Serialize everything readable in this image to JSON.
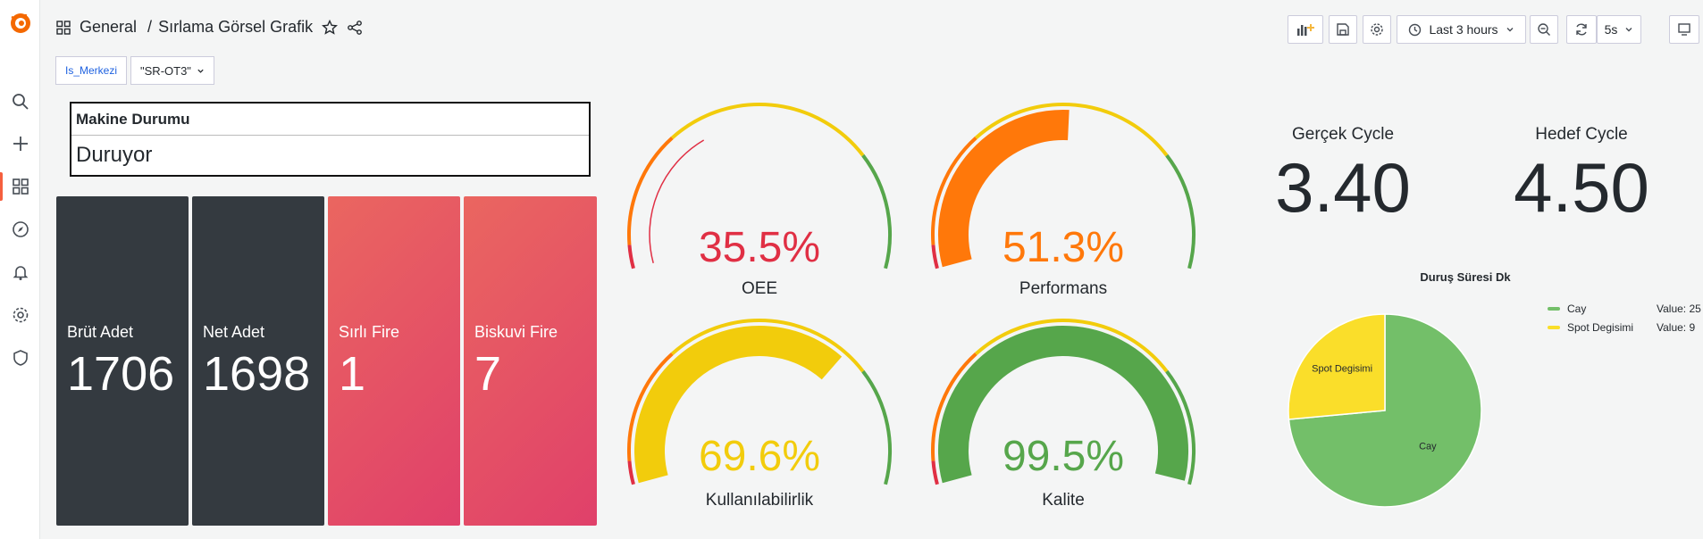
{
  "breadcrumb": {
    "folder": "General",
    "separator": "/",
    "dashboard": "Sırlama Görsel Grafik"
  },
  "toolbar": {
    "time_range": "Last 3 hours",
    "refresh_interval": "5s"
  },
  "variables": {
    "label": "Is_Merkezi",
    "value": "\"SR-OT3\""
  },
  "machine": {
    "title": "Makine Durumu",
    "status": "Duruyor"
  },
  "stats": [
    {
      "label": "Brüt Adet",
      "value": "1706"
    },
    {
      "label": "Net Adet",
      "value": "1698"
    },
    {
      "label": "Sırlı Fire",
      "value": "1"
    },
    {
      "label": "Biskuvi Fire",
      "value": "7"
    }
  ],
  "gauges": [
    {
      "label": "OEE",
      "display": "35.5%",
      "value": 35.5,
      "color": "#e02f44"
    },
    {
      "label": "Performans",
      "display": "51.3%",
      "value": 51.3,
      "color": "#ff780a"
    },
    {
      "label": "Kullanılabilirlik",
      "display": "69.6%",
      "value": 69.6,
      "color": "#f2cc0c"
    },
    {
      "label": "Kalite",
      "display": "99.5%",
      "value": 99.5,
      "color": "#56a64b"
    }
  ],
  "cycles": {
    "actual": {
      "title": "Gerçek Cycle",
      "value": "3.40"
    },
    "target": {
      "title": "Hedef Cycle",
      "value": "4.50"
    }
  },
  "pie": {
    "title": "Duruş Süresi Dk",
    "value_prefix": "Value:",
    "slices": [
      {
        "name": "Cay",
        "value": 25,
        "color": "#73bf69"
      },
      {
        "name": "Spot Degisimi",
        "value": 9,
        "color": "#fade2a"
      }
    ]
  },
  "colors": {
    "accent": "#f55f3e",
    "threshold_red": "#e02f44",
    "threshold_orange": "#ff780a",
    "threshold_yellow": "#f2cc0c",
    "threshold_green": "#56a64b"
  }
}
